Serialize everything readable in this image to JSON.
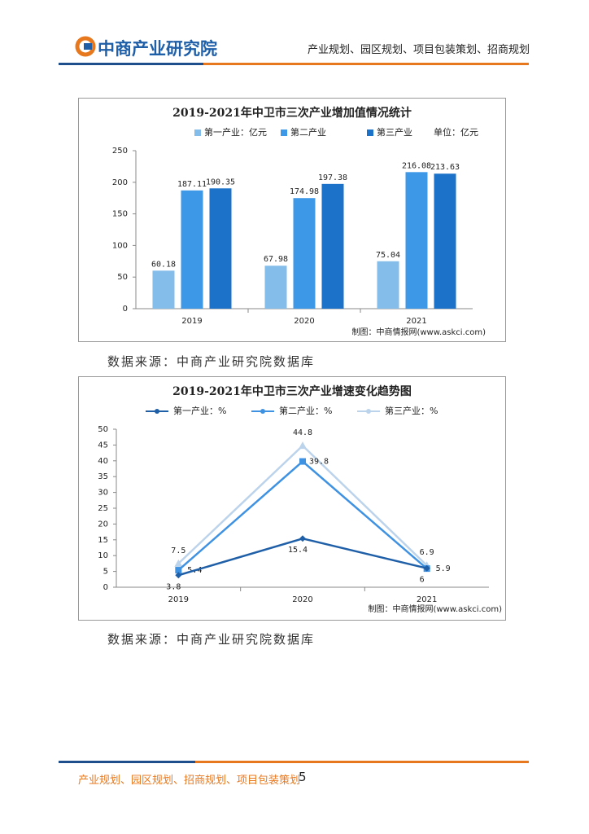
{
  "header": {
    "logo": "中商产业研究院",
    "tagline": "产业规划、园区规划、项目包装策划、招商规划"
  },
  "chart_data": [
    {
      "type": "bar",
      "title": "2019-2021年中卫市三次产业增加值情况统计",
      "unit": "单位：亿元",
      "categories": [
        "2019",
        "2020",
        "2021"
      ],
      "series": [
        {
          "name": "第一产业：亿元",
          "color": "#85bdea",
          "values": [
            60.18,
            67.98,
            75.04
          ]
        },
        {
          "name": "第二产业",
          "color": "#3d99e8",
          "values": [
            187.11,
            174.98,
            216.08
          ]
        },
        {
          "name": "第三产业",
          "color": "#1c72c8",
          "values": [
            190.35,
            197.38,
            213.63
          ]
        }
      ],
      "ylim": [
        0,
        250
      ],
      "yticks": [
        0,
        50,
        100,
        150,
        200,
        250
      ],
      "credit": "制图：中商情报网(www.askci.com)"
    },
    {
      "type": "line",
      "title": "2019-2021年中卫市三次产业增速变化趋势图",
      "categories": [
        "2019",
        "2020",
        "2021"
      ],
      "series": [
        {
          "name": "第一产业：%",
          "color": "#1f5fa8",
          "values": [
            3.8,
            15.4,
            6
          ]
        },
        {
          "name": "第二产业：%",
          "color": "#3f92e2",
          "values": [
            5.4,
            39.8,
            5.9
          ]
        },
        {
          "name": "第三产业：%",
          "color": "#bcd3ec",
          "values": [
            7.5,
            44.8,
            6.9
          ]
        }
      ],
      "ylim": [
        0,
        50
      ],
      "yticks": [
        0,
        5,
        10,
        15,
        20,
        25,
        30,
        35,
        40,
        45,
        50
      ],
      "credit": "制图：中商情报网(www.askci.com)"
    }
  ],
  "sources": [
    "数据来源：中商产业研究院数据库",
    "数据来源：中商产业研究院数据库"
  ],
  "footer": {
    "text": "产业规划、园区规划、招商规划、项目包装策划",
    "page": 5
  }
}
